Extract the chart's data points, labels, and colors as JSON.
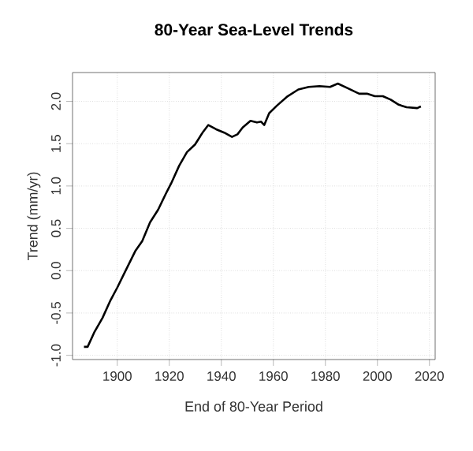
{
  "chart_data": {
    "type": "line",
    "title": "80-Year Sea-Level Trends",
    "xlabel": "End of 80-Year Period",
    "ylabel": "Trend (mm/yr)",
    "x": [
      1887.2,
      1888.6,
      1891.3,
      1894.3,
      1897.4,
      1900,
      1902.4,
      1904.5,
      1906.9,
      1909.6,
      1912.6,
      1915.7,
      1918.7,
      1920.7,
      1923.8,
      1926.8,
      1929.9,
      1933,
      1935,
      1938,
      1941.1,
      1944.1,
      1946.2,
      1948.2,
      1951.2,
      1953.7,
      1955.3,
      1956.5,
      1958.4,
      1961.4,
      1965.5,
      1969.6,
      1973.6,
      1977.7,
      1981.8,
      1984.8,
      1988.9,
      1993,
      1996,
      1999,
      2002.1,
      2005.1,
      2008.2,
      2011.2,
      2015.3,
      2016.7
    ],
    "series": [
      {
        "color": "#000000",
        "values": [
          -0.9,
          -0.9,
          -0.72,
          -0.56,
          -0.35,
          -0.2,
          -0.05,
          0.08,
          0.23,
          0.35,
          0.57,
          0.72,
          0.91,
          1.03,
          1.24,
          1.4,
          1.49,
          1.64,
          1.72,
          1.67,
          1.63,
          1.58,
          1.61,
          1.69,
          1.77,
          1.75,
          1.76,
          1.72,
          1.86,
          1.95,
          2.06,
          2.14,
          2.17,
          2.18,
          2.17,
          2.21,
          2.15,
          2.09,
          2.09,
          2.06,
          2.06,
          2.02,
          1.96,
          1.93,
          1.92,
          1.94
        ]
      }
    ],
    "xlim": [
      1882.8,
      2022.2
    ],
    "ylim": [
      -1.05,
      2.34
    ],
    "xticks": [
      1900,
      1920,
      1940,
      1960,
      1980,
      2000,
      2020
    ],
    "yticks": [
      {
        "value": -1,
        "label": "-1.0"
      },
      {
        "value": -0.5,
        "label": "-0.5"
      },
      {
        "value": 0,
        "label": "0.0"
      },
      {
        "value": 0.5,
        "label": "0.5"
      },
      {
        "value": 1,
        "label": "1.0"
      },
      {
        "value": 1.5,
        "label": "1.5"
      },
      {
        "value": 2,
        "label": "2.0"
      }
    ],
    "grid": true,
    "marker": "none",
    "line_style": "solid"
  }
}
